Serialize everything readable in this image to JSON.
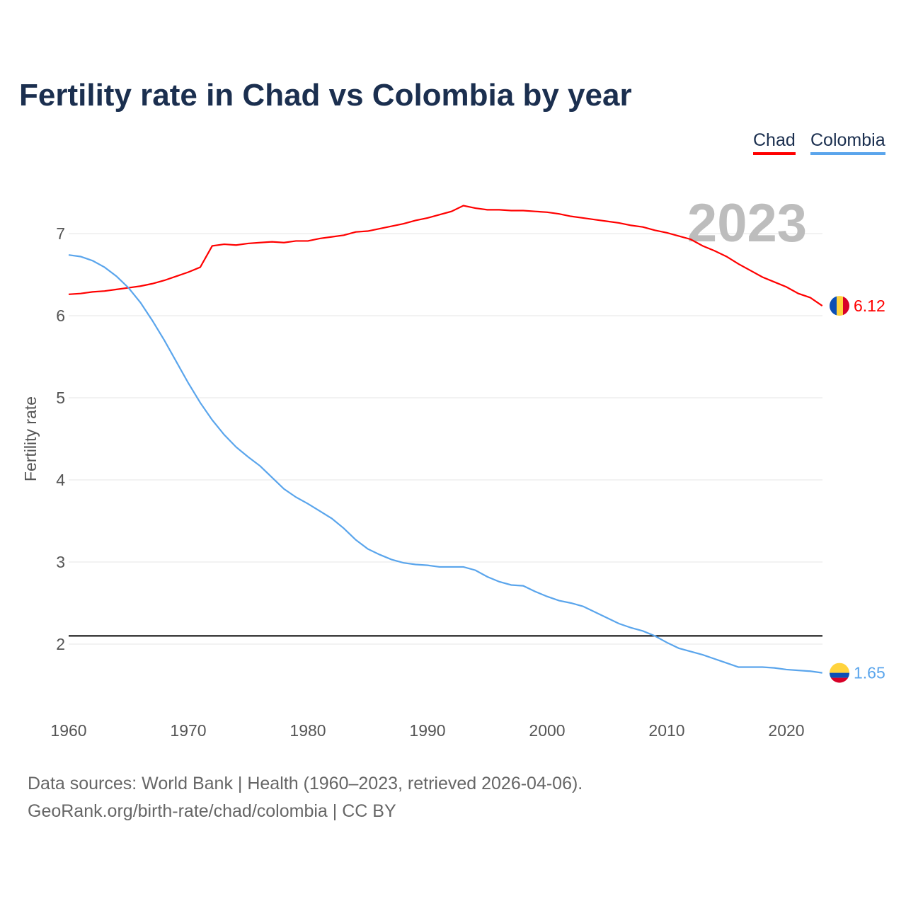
{
  "title": "Fertility rate in Chad vs Colombia by year",
  "source_line1": "Data sources: World Bank | Health (1960–2023, retrieved 2026-04-06).",
  "source_line2": "GeoRank.org/birth-rate/chad/colombia | CC BY",
  "chart_data": {
    "type": "line",
    "title": "Fertility rate in Chad vs Colombia by year",
    "xlabel": "",
    "ylabel": "Fertility rate",
    "year_label": "2023",
    "xlim": [
      1960,
      2023
    ],
    "ylim": [
      1.15,
      7.7
    ],
    "xticks": [
      1960,
      1970,
      1980,
      1990,
      2000,
      2010,
      2020
    ],
    "yticks": [
      2,
      3,
      4,
      5,
      6,
      7
    ],
    "grid": true,
    "legend_placement": "top-right",
    "reference_line": 2.1,
    "x": [
      1960,
      1961,
      1962,
      1963,
      1964,
      1965,
      1966,
      1967,
      1968,
      1969,
      1970,
      1971,
      1972,
      1973,
      1974,
      1975,
      1976,
      1977,
      1978,
      1979,
      1980,
      1981,
      1982,
      1983,
      1984,
      1985,
      1986,
      1987,
      1988,
      1989,
      1990,
      1991,
      1992,
      1993,
      1994,
      1995,
      1996,
      1997,
      1998,
      1999,
      2000,
      2001,
      2002,
      2003,
      2004,
      2005,
      2006,
      2007,
      2008,
      2009,
      2010,
      2011,
      2012,
      2013,
      2014,
      2015,
      2016,
      2017,
      2018,
      2019,
      2020,
      2021,
      2022,
      2023
    ],
    "series": [
      {
        "name": "Chad",
        "color": "#ff0000",
        "end_label": "6.12",
        "values": [
          6.26,
          6.27,
          6.29,
          6.3,
          6.32,
          6.34,
          6.36,
          6.39,
          6.43,
          6.48,
          6.53,
          6.59,
          6.85,
          6.87,
          6.86,
          6.88,
          6.89,
          6.9,
          6.89,
          6.91,
          6.91,
          6.94,
          6.96,
          6.98,
          7.02,
          7.03,
          7.06,
          7.09,
          7.12,
          7.16,
          7.19,
          7.23,
          7.27,
          7.34,
          7.31,
          7.29,
          7.29,
          7.28,
          7.28,
          7.27,
          7.26,
          7.24,
          7.21,
          7.19,
          7.17,
          7.15,
          7.13,
          7.1,
          7.08,
          7.04,
          7.01,
          6.97,
          6.93,
          6.85,
          6.79,
          6.72,
          6.63,
          6.55,
          6.47,
          6.41,
          6.35,
          6.27,
          6.22,
          6.12
        ]
      },
      {
        "name": "Colombia",
        "color": "#5aa5ec",
        "end_label": "1.65",
        "values": [
          6.74,
          6.72,
          6.67,
          6.59,
          6.48,
          6.34,
          6.16,
          5.94,
          5.7,
          5.44,
          5.18,
          4.94,
          4.73,
          4.55,
          4.4,
          4.28,
          4.17,
          4.03,
          3.89,
          3.79,
          3.71,
          3.62,
          3.53,
          3.41,
          3.27,
          3.16,
          3.09,
          3.03,
          2.99,
          2.97,
          2.96,
          2.94,
          2.94,
          2.94,
          2.9,
          2.82,
          2.76,
          2.72,
          2.71,
          2.64,
          2.58,
          2.53,
          2.5,
          2.46,
          2.39,
          2.32,
          2.25,
          2.2,
          2.16,
          2.1,
          2.02,
          1.95,
          1.91,
          1.87,
          1.82,
          1.77,
          1.72,
          1.72,
          1.72,
          1.71,
          1.69,
          1.68,
          1.67,
          1.65
        ]
      }
    ]
  }
}
